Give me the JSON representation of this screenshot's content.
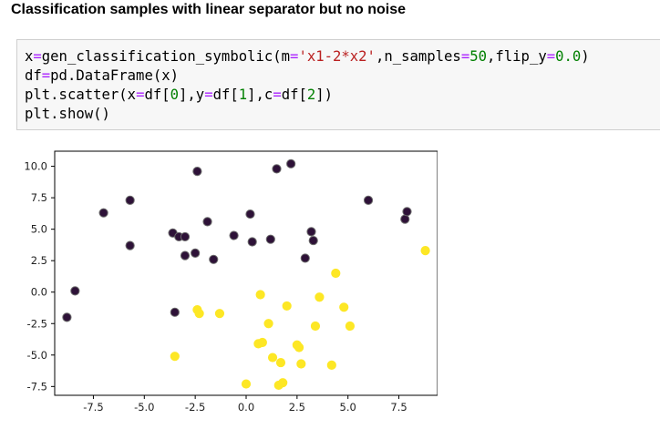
{
  "heading": "Classification samples with linear separator but no noise",
  "code_cell": {
    "lines": [
      [
        [
          "x",
          ""
        ],
        [
          "=",
          "op"
        ],
        [
          "gen_classification_symbolic(m",
          ""
        ],
        [
          "=",
          "op"
        ],
        [
          "'x1-2*x2'",
          "str"
        ],
        [
          ",n_samples",
          ""
        ],
        [
          "=",
          "op"
        ],
        [
          "50",
          "num"
        ],
        [
          ",flip_y",
          ""
        ],
        [
          "=",
          "op"
        ],
        [
          "0.0",
          "num"
        ],
        [
          ")",
          ""
        ]
      ],
      [
        [
          "df",
          ""
        ],
        [
          "=",
          "op"
        ],
        [
          "pd.DataFrame(x)",
          ""
        ]
      ],
      [
        [
          "plt.scatter(x",
          ""
        ],
        [
          "=",
          "op"
        ],
        [
          "df[",
          ""
        ],
        [
          "0",
          "num"
        ],
        [
          "],y",
          ""
        ],
        [
          "=",
          "op"
        ],
        [
          "df[",
          ""
        ],
        [
          "1",
          "num"
        ],
        [
          "],c",
          ""
        ],
        [
          "=",
          "op"
        ],
        [
          "df[",
          ""
        ],
        [
          "2",
          "num"
        ],
        [
          "])",
          ""
        ]
      ],
      [
        [
          "plt.show()",
          ""
        ]
      ]
    ]
  },
  "chart_data": {
    "type": "scatter",
    "title": "",
    "xlabel": "",
    "ylabel": "",
    "xlim": [
      -9.4,
      9.4
    ],
    "ylim": [
      -8.2,
      11.2
    ],
    "xticks": [
      "-7.5",
      "-5.0",
      "-2.5",
      "0.0",
      "2.5",
      "5.0",
      "7.5"
    ],
    "xtick_values": [
      -7.5,
      -5.0,
      -2.5,
      0.0,
      2.5,
      5.0,
      7.5
    ],
    "yticks": [
      "-7.5",
      "-5.0",
      "-2.5",
      "0.0",
      "2.5",
      "5.0",
      "7.5",
      "10.0"
    ],
    "ytick_values": [
      -7.5,
      -5.0,
      -2.5,
      0.0,
      2.5,
      5.0,
      7.5,
      10.0
    ],
    "grid": false,
    "colors": {
      "class_0": "#2e1238",
      "class_1": "#fde725"
    },
    "series": [
      {
        "class": 0,
        "points": [
          [
            -8.8,
            -2.0
          ],
          [
            -8.4,
            0.1
          ],
          [
            -7.0,
            6.3
          ],
          [
            -5.7,
            7.3
          ],
          [
            -5.7,
            3.7
          ],
          [
            -3.5,
            -1.6
          ],
          [
            -3.6,
            4.7
          ],
          [
            -3.3,
            4.4
          ],
          [
            -3.0,
            4.4
          ],
          [
            -3.0,
            2.9
          ],
          [
            -2.5,
            3.1
          ],
          [
            -2.4,
            9.6
          ],
          [
            -1.9,
            5.6
          ],
          [
            -1.6,
            2.6
          ],
          [
            -0.6,
            4.5
          ],
          [
            0.2,
            6.2
          ],
          [
            0.3,
            4.0
          ],
          [
            1.2,
            4.2
          ],
          [
            1.5,
            9.8
          ],
          [
            2.2,
            10.2
          ],
          [
            2.9,
            2.7
          ],
          [
            3.2,
            4.8
          ],
          [
            3.3,
            4.1
          ],
          [
            6.0,
            7.3
          ],
          [
            7.8,
            5.8
          ],
          [
            7.9,
            6.4
          ]
        ]
      },
      {
        "class": 1,
        "points": [
          [
            -3.5,
            -5.1
          ],
          [
            -2.4,
            -1.4
          ],
          [
            -2.3,
            -1.7
          ],
          [
            -1.3,
            -1.7
          ],
          [
            0.0,
            -7.3
          ],
          [
            0.6,
            -4.1
          ],
          [
            0.8,
            -4.0
          ],
          [
            0.7,
            -0.2
          ],
          [
            1.1,
            -2.5
          ],
          [
            1.3,
            -5.2
          ],
          [
            1.6,
            -7.4
          ],
          [
            1.7,
            -5.6
          ],
          [
            1.8,
            -7.2
          ],
          [
            2.0,
            -1.1
          ],
          [
            2.5,
            -4.2
          ],
          [
            2.6,
            -4.4
          ],
          [
            2.7,
            -5.7
          ],
          [
            3.4,
            -2.7
          ],
          [
            3.6,
            -0.4
          ],
          [
            4.2,
            -5.8
          ],
          [
            4.4,
            1.5
          ],
          [
            4.8,
            -1.2
          ],
          [
            5.1,
            -2.7
          ],
          [
            8.8,
            3.3
          ]
        ]
      }
    ]
  }
}
